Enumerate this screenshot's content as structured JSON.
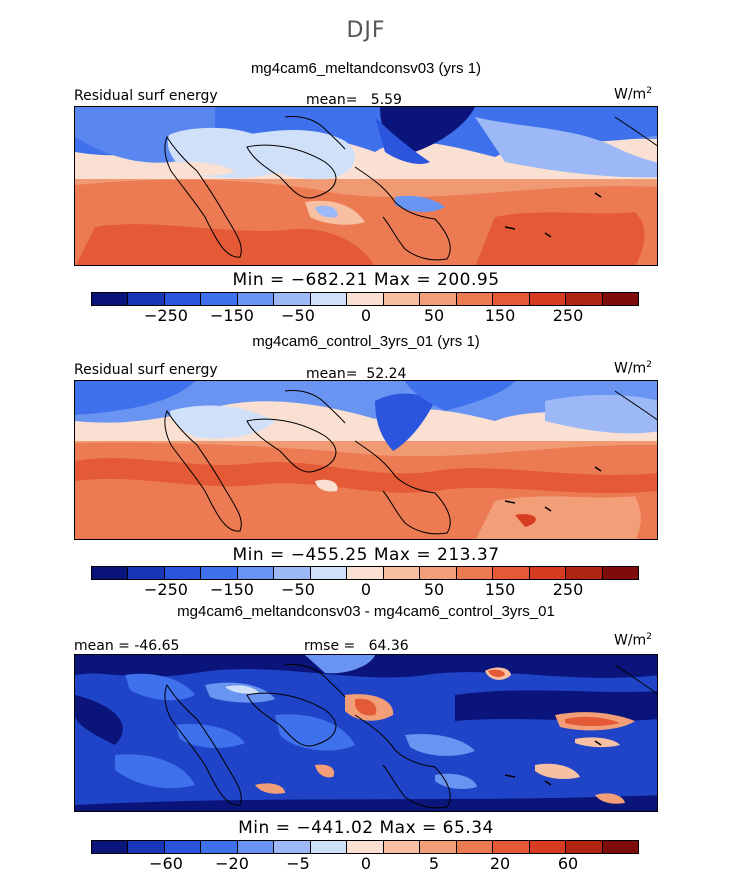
{
  "figure_title": "DJF",
  "units_label": "W/m",
  "units_exp": "2",
  "diff_units": "W/m",
  "panels": [
    {
      "title": "mg4cam6_meltandconsv03 (yrs 1)",
      "variable": "Residual surf energy",
      "mean_label": "mean=",
      "mean_value": "5.59",
      "minmax": "Min = −682.21 Max = 200.95"
    },
    {
      "title": "mg4cam6_control_3yrs_01 (yrs 1)",
      "variable": "Residual surf energy",
      "mean_label": "mean=",
      "mean_value": "52.24",
      "minmax": "Min = −455.25 Max = 213.37"
    },
    {
      "title": "mg4cam6_meltandconsv03 - mg4cam6_control_3yrs_01",
      "mean_text": "mean = -46.65",
      "rmse_text": "rmse =",
      "rmse_value": "64.36",
      "minmax": "Min = −441.02 Max =   65.34"
    }
  ],
  "colorbar": {
    "colors": [
      "#0a147a",
      "#1836b8",
      "#2a55dc",
      "#3f71ec",
      "#6a94f2",
      "#9cb8f6",
      "#cfe0f8",
      "#fae0d2",
      "#f8c0a2",
      "#f29e78",
      "#ec7a52",
      "#e45a36",
      "#d63c22",
      "#b02412",
      "#7e0c0a"
    ]
  },
  "colorbar_ticks_abs": [
    "−250",
    "−150",
    "−50",
    "0",
    "50",
    "150",
    "250"
  ],
  "colorbar_ticks_diff": [
    "−60",
    "−20",
    "−5",
    "0",
    "5",
    "20",
    "60"
  ]
}
